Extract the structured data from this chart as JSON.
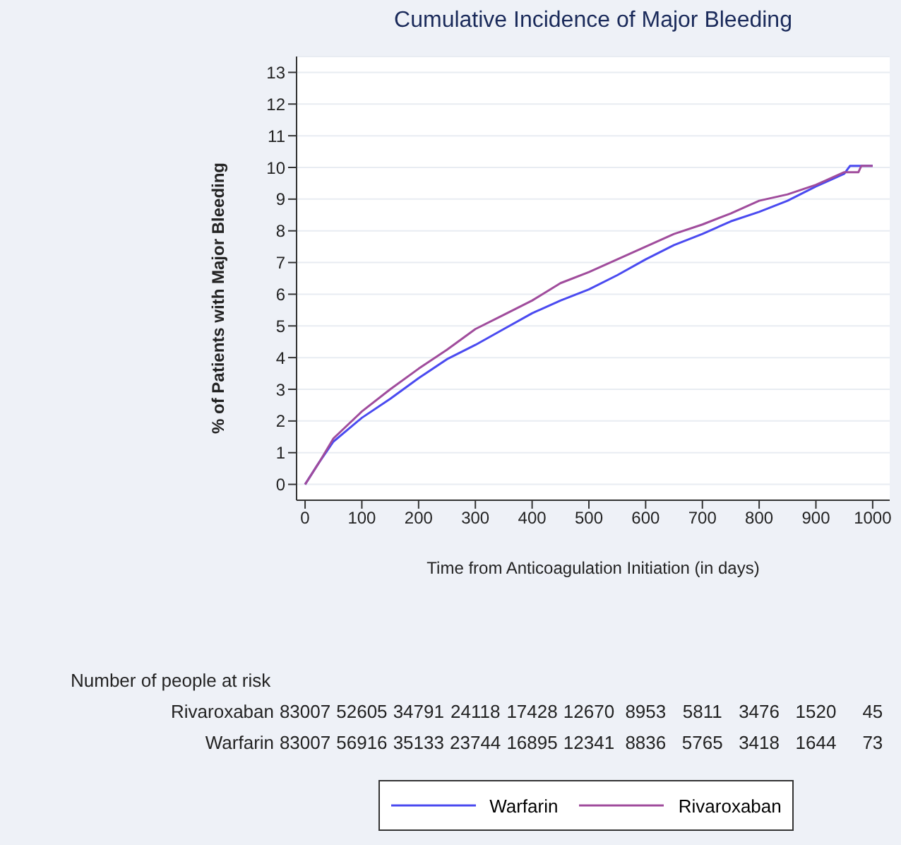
{
  "chart_data": {
    "type": "line",
    "title": "Cumulative Incidence of Major Bleeding",
    "xlabel": "Time from Anticoagulation Initiation (in days)",
    "ylabel": "% of Patients with Major Bleeding",
    "xlim": [
      -15,
      1030
    ],
    "xticks": [
      0,
      100,
      200,
      300,
      400,
      500,
      600,
      700,
      800,
      900,
      1000
    ],
    "ylim": [
      -0.5,
      13.5
    ],
    "yticks": [
      0,
      1,
      2,
      3,
      4,
      5,
      6,
      7,
      8,
      9,
      10,
      11,
      12,
      13
    ],
    "grid": "y",
    "legend": "bottom",
    "marker": "none",
    "line_style": "solid",
    "series": [
      {
        "name": "Warfarin",
        "color": "#4a4af0",
        "x": [
          0,
          25,
          50,
          100,
          150,
          200,
          250,
          300,
          350,
          400,
          450,
          500,
          550,
          600,
          650,
          700,
          750,
          800,
          850,
          900,
          950,
          960,
          1000
        ],
        "values": [
          0,
          0.7,
          1.35,
          2.1,
          2.7,
          3.35,
          3.95,
          4.4,
          4.9,
          5.4,
          5.8,
          6.15,
          6.6,
          7.1,
          7.55,
          7.9,
          8.3,
          8.6,
          8.95,
          9.4,
          9.8,
          10.05,
          10.05
        ]
      },
      {
        "name": "Rivaroxaban",
        "color": "#a04c9c",
        "x": [
          0,
          25,
          50,
          100,
          150,
          200,
          250,
          300,
          350,
          400,
          450,
          500,
          550,
          600,
          650,
          700,
          750,
          800,
          850,
          900,
          950,
          975,
          980,
          1000
        ],
        "values": [
          0,
          0.7,
          1.45,
          2.3,
          3.0,
          3.65,
          4.25,
          4.9,
          5.35,
          5.8,
          6.35,
          6.7,
          7.1,
          7.5,
          7.9,
          8.2,
          8.55,
          8.95,
          9.15,
          9.45,
          9.85,
          9.85,
          10.05,
          10.05
        ]
      }
    ],
    "annotations": [
      "Number of people at risk",
      "Rivaroxaban 83007 52605 34791 24118 17428 12670 8953 5811 3476 1520 45",
      "Warfarin 83007 56916 35133 23744 16895 12341 8836 5765 3418 1644 73"
    ]
  }
}
